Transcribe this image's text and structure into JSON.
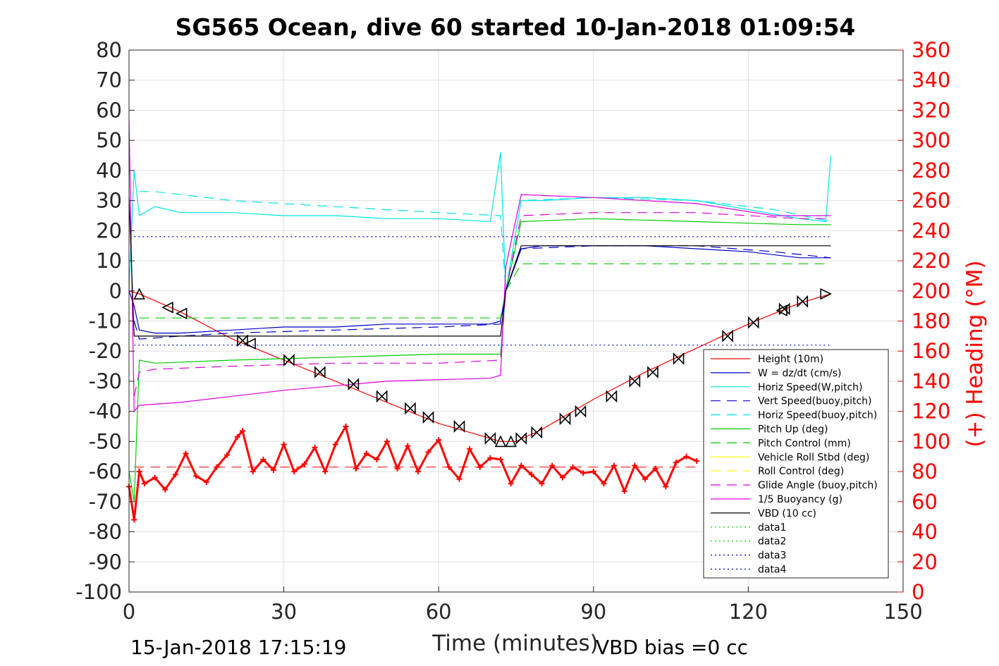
{
  "chart_data": {
    "type": "line",
    "title": "SG565 Ocean, dive 60 started 10-Jan-2018 01:09:54",
    "xlabel": "Time (minutes)",
    "ylabel": "",
    "y2label": "(+) Heading (°M)",
    "xlim": [
      0,
      150
    ],
    "ylim": [
      -100,
      80
    ],
    "y2lim": [
      0,
      360
    ],
    "xticks": [
      "0",
      "30",
      "60",
      "90",
      "120",
      "150"
    ],
    "yticks": [
      "80",
      "70",
      "60",
      "50",
      "40",
      "30",
      "20",
      "10",
      "0",
      "-10",
      "-20",
      "-30",
      "-40",
      "-50",
      "-60",
      "-70",
      "-80",
      "-90",
      "-100"
    ],
    "y2ticks": [
      "360",
      "340",
      "320",
      "300",
      "280",
      "260",
      "240",
      "220",
      "200",
      "180",
      "160",
      "140",
      "120",
      "100",
      "80",
      "60",
      "40",
      "20",
      "0"
    ],
    "grid": true,
    "legend_position": "bottom-right",
    "footer_left": "15-Jan-2018 17:15:19",
    "footer_right": "VBD bias =0 cc",
    "legend": [
      {
        "label": "Height (10m)",
        "color": "#ff0000",
        "dash": "solid"
      },
      {
        "label": "W = dz/dt (cm/s)",
        "color": "#0000cc",
        "dash": "solid"
      },
      {
        "label": "Horiz Speed(W,pitch)",
        "color": "#00e5e5",
        "dash": "solid"
      },
      {
        "label": "Vert Speed(buoy,pitch)",
        "color": "#0000cc",
        "dash": "dashed"
      },
      {
        "label": "Horiz Speed(buoy,pitch)",
        "color": "#00e5e5",
        "dash": "dashed"
      },
      {
        "label": "Pitch Up (deg)",
        "color": "#00cc00",
        "dash": "solid"
      },
      {
        "label": "Pitch Control (mm)",
        "color": "#00cc00",
        "dash": "dashed"
      },
      {
        "label": "Vehicle Roll Stbd (deg)",
        "color": "#ffff00",
        "dash": "solid"
      },
      {
        "label": "Roll Control (deg)",
        "color": "#ffff00",
        "dash": "dashed"
      },
      {
        "label": "Glide Angle (buoy,pitch)",
        "color": "#dd00dd",
        "dash": "dashed"
      },
      {
        "label": "1/5 Buoyancy (g)",
        "color": "#dd00dd",
        "dash": "solid"
      },
      {
        "label": "VBD (10 cc)",
        "color": "#000000",
        "dash": "solid"
      },
      {
        "label": "data1",
        "color": "#00cc00",
        "dash": "dotted"
      },
      {
        "label": "data2",
        "color": "#00cc00",
        "dash": "dotted"
      },
      {
        "label": "data3",
        "color": "#0000cc",
        "dash": "dotted"
      },
      {
        "label": "data4",
        "color": "#0000cc",
        "dash": "dotted"
      }
    ],
    "series": [
      {
        "name": "Height (10m)",
        "color": "#ff0000",
        "dash": "solid",
        "x": [
          0,
          2,
          10,
          20,
          30,
          40,
          50,
          60,
          70,
          72,
          75,
          80,
          90,
          100,
          110,
          120,
          130,
          136
        ],
        "y": [
          0,
          -1,
          -7,
          -16,
          -23,
          -30,
          -37,
          -44,
          -49,
          -50,
          -50,
          -46,
          -36,
          -27,
          -19,
          -11,
          -4,
          -1
        ]
      },
      {
        "name": "W = dz/dt (cm/s)",
        "color": "#0000cc",
        "dash": "solid",
        "x": [
          0,
          1,
          2,
          5,
          10,
          20,
          30,
          40,
          50,
          60,
          70,
          72,
          73,
          76,
          80,
          90,
          100,
          110,
          120,
          130,
          136
        ],
        "y": [
          0,
          -5,
          -13,
          -14,
          -14,
          -13,
          -12,
          -12,
          -11,
          -11,
          -11,
          -10,
          0,
          14,
          15,
          15,
          15,
          14,
          13,
          11,
          11
        ]
      },
      {
        "name": "Horiz Speed(W,pitch)",
        "color": "#00e5e5",
        "dash": "solid",
        "x": [
          0,
          1,
          2,
          5,
          10,
          20,
          30,
          40,
          50,
          60,
          70,
          72,
          73,
          76,
          80,
          90,
          100,
          110,
          120,
          130,
          135,
          136
        ],
        "y": [
          0,
          40,
          25,
          28,
          26,
          26,
          25,
          25,
          24,
          24,
          23,
          46,
          0,
          30,
          30,
          31,
          31,
          30,
          27,
          24,
          23,
          45
        ]
      },
      {
        "name": "Vert Speed(buoy,pitch)",
        "color": "#0000cc",
        "dash": "dashed",
        "x": [
          1,
          2,
          10,
          20,
          40,
          60,
          72,
          73,
          76,
          90,
          110,
          125,
          136
        ],
        "y": [
          -10,
          -16,
          -15,
          -14,
          -13,
          -12,
          -11,
          0,
          14,
          15,
          15,
          13,
          11
        ]
      },
      {
        "name": "Horiz Speed(buoy,pitch)",
        "color": "#00e5e5",
        "dash": "dashed",
        "x": [
          2,
          5,
          20,
          40,
          60,
          72,
          73,
          76,
          90,
          110,
          125,
          136
        ],
        "y": [
          33,
          33,
          30,
          28,
          26,
          25,
          0,
          30,
          31,
          30,
          27,
          23
        ]
      },
      {
        "name": "Pitch Up (deg)",
        "color": "#00cc00",
        "dash": "solid",
        "x": [
          0,
          1,
          2,
          5,
          20,
          40,
          60,
          72,
          73,
          76,
          90,
          110,
          130,
          136
        ],
        "y": [
          -60,
          -70,
          -23,
          -24,
          -23,
          -22,
          -21,
          -21,
          0,
          23,
          24,
          23,
          22,
          22
        ]
      },
      {
        "name": "Pitch Control (mm)",
        "color": "#00cc00",
        "dash": "dashed",
        "x": [
          2,
          72,
          73,
          76,
          136
        ],
        "y": [
          -9,
          -9,
          0,
          9,
          9
        ]
      },
      {
        "name": "Glide Angle (buoy,pitch)",
        "color": "#dd00dd",
        "dash": "dashed",
        "x": [
          1,
          2,
          5,
          20,
          40,
          60,
          72,
          73,
          76,
          90,
          110,
          130,
          136
        ],
        "y": [
          -35,
          -27,
          -26,
          -25,
          -24,
          -24,
          -23,
          0,
          25,
          26,
          26,
          24,
          24
        ]
      },
      {
        "name": "1/5 Buoyancy (g)",
        "color": "#dd00dd",
        "dash": "solid",
        "x": [
          0,
          1,
          2,
          10,
          30,
          50,
          70,
          72,
          73,
          76,
          90,
          110,
          125,
          136
        ],
        "y": [
          57,
          -40,
          -38,
          -37,
          -33,
          -30,
          -29,
          -28,
          8,
          32,
          31,
          29,
          25,
          25
        ]
      },
      {
        "name": "VBD (10 cc)",
        "color": "#000000",
        "dash": "solid",
        "x": [
          0,
          1,
          2,
          72,
          73,
          76,
          136
        ],
        "y": [
          31,
          -15,
          -15,
          -15,
          0,
          15,
          15
        ]
      },
      {
        "name": "data3",
        "color": "#0000cc",
        "dash": "dotted",
        "x": [
          1,
          136
        ],
        "y": [
          18,
          18
        ]
      },
      {
        "name": "data4",
        "color": "#0000cc",
        "dash": "dotted",
        "x": [
          1,
          136
        ],
        "y": [
          -18,
          -18
        ]
      }
    ],
    "heading": {
      "name": "(+) Heading",
      "color": "#ff0000",
      "reference": 83,
      "x": [
        0,
        1,
        2,
        3,
        5,
        7,
        9,
        11,
        13,
        15,
        17,
        19,
        21,
        22,
        24,
        26,
        28,
        30,
        32,
        34,
        36,
        38,
        40,
        42,
        44,
        46,
        48,
        50,
        52,
        54,
        56,
        58,
        60,
        62,
        64,
        66,
        68,
        70,
        72,
        74,
        76,
        78,
        80,
        82,
        84,
        86,
        88,
        90,
        92,
        94,
        96,
        98,
        100,
        102,
        104,
        106,
        108,
        110
      ],
      "y": [
        70,
        48,
        80,
        72,
        76,
        68,
        78,
        92,
        77,
        73,
        83,
        91,
        103,
        107,
        80,
        88,
        81,
        98,
        80,
        85,
        96,
        80,
        98,
        110,
        82,
        92,
        88,
        100,
        82,
        97,
        80,
        93,
        101,
        83,
        75,
        95,
        83,
        89,
        88,
        72,
        84,
        78,
        72,
        84,
        76,
        83,
        79,
        80,
        72,
        84,
        67,
        84,
        75,
        82,
        70,
        86,
        90,
        87
      ]
    },
    "ticks": [
      {
        "x": 2,
        "y": -1,
        "marker": "up"
      },
      {
        "x": 7.5,
        "y": -5.5,
        "marker": "left"
      },
      {
        "x": 10.2,
        "y": -7.5,
        "marker": "left"
      },
      {
        "x": 22,
        "y": -16.5,
        "marker": "bowtie"
      },
      {
        "x": 23.5,
        "y": -17.5,
        "marker": "left"
      },
      {
        "x": 31,
        "y": -23,
        "marker": "bowtie"
      },
      {
        "x": 37,
        "y": -27,
        "marker": "bowtie"
      },
      {
        "x": 43.5,
        "y": -31,
        "marker": "bowtie"
      },
      {
        "x": 49,
        "y": -35,
        "marker": "bowtie"
      },
      {
        "x": 54.5,
        "y": -39,
        "marker": "bowtie"
      },
      {
        "x": 58,
        "y": -42,
        "marker": "bowtie"
      },
      {
        "x": 64,
        "y": -45,
        "marker": "bowtie"
      },
      {
        "x": 70,
        "y": -49,
        "marker": "bowtie"
      },
      {
        "x": 72,
        "y": -50,
        "marker": "up"
      },
      {
        "x": 74,
        "y": -50,
        "marker": "up"
      },
      {
        "x": 76,
        "y": -49,
        "marker": "bowtie"
      },
      {
        "x": 79,
        "y": -47,
        "marker": "bowtie"
      },
      {
        "x": 84.5,
        "y": -42.5,
        "marker": "bowtie"
      },
      {
        "x": 87.5,
        "y": -40,
        "marker": "bowtie"
      },
      {
        "x": 93.5,
        "y": -35,
        "marker": "bowtie"
      },
      {
        "x": 98,
        "y": -30,
        "marker": "bowtie"
      },
      {
        "x": 101.5,
        "y": -27,
        "marker": "bowtie"
      },
      {
        "x": 106.5,
        "y": -22.5,
        "marker": "bowtie"
      },
      {
        "x": 116,
        "y": -15,
        "marker": "bowtie"
      },
      {
        "x": 121,
        "y": -10.5,
        "marker": "bowtie"
      },
      {
        "x": 126.5,
        "y": -6.5,
        "marker": "left"
      },
      {
        "x": 127,
        "y": -6,
        "marker": "bowtie"
      },
      {
        "x": 130.5,
        "y": -3.5,
        "marker": "bowtie"
      },
      {
        "x": 135,
        "y": -1,
        "marker": "right"
      }
    ]
  }
}
